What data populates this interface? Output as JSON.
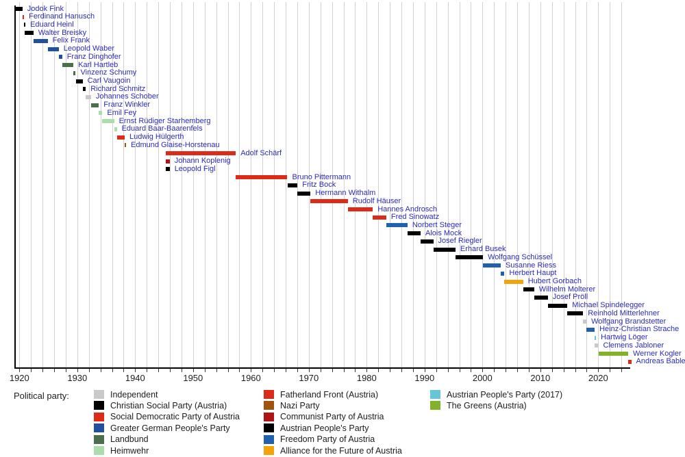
{
  "chart_data": {
    "type": "timeline",
    "description_of_depiction": "Gantt-style timeline of office holders (Vice-Chancellors of Austria) colored by political party, 1919-2025",
    "legend_title": "Political party:",
    "x_axis": {
      "axis_start_year": 1919.2,
      "axis_end_year": 2025.5,
      "gridline_interval_years": 2,
      "gridline_start_year": 1920,
      "gridline_end_year": 2024,
      "tick_labels": [
        "1920",
        "1930",
        "1940",
        "1950",
        "1960",
        "1970",
        "1980",
        "1990",
        "2000",
        "2010",
        "2020"
      ],
      "tick_label_years": [
        1920,
        1930,
        1940,
        1950,
        1960,
        1970,
        1980,
        1990,
        2000,
        2010,
        2020
      ]
    },
    "parties": {
      "independent": {
        "label": "Independent",
        "color": "#c9c9c9"
      },
      "christian_social": {
        "label": "Christian Social Party (Austria)",
        "color": "#000000"
      },
      "social_democratic": {
        "label": "Social Democratic Party of Austria",
        "color": "#dc2b18"
      },
      "greater_german": {
        "label": "Greater German People's Party",
        "color": "#20509e"
      },
      "landbund": {
        "label": "Landbund",
        "color": "#4d6e4d"
      },
      "heimwehr": {
        "label": "Heimwehr",
        "color": "#abdcab"
      },
      "fatherland_front": {
        "label": "Fatherland Front (Austria)",
        "color": "#dc2b18"
      },
      "nazi": {
        "label": "Nazi Party",
        "color": "#a0540e"
      },
      "communist": {
        "label": "Communist Party of Austria",
        "color": "#b01414"
      },
      "peoples_party": {
        "label": "Austrian People's Party",
        "color": "#000000"
      },
      "freedom_party": {
        "label": "Freedom Party of Austria",
        "color": "#2061af"
      },
      "alliance_future": {
        "label": "Alliance for the Future of Austria",
        "color": "#f5a30b"
      },
      "peoples_party_2017": {
        "label": "Austrian People's Party (2017)",
        "color": "#64c6d6"
      },
      "greens": {
        "label": "The Greens (Austria)",
        "color": "#82b12a"
      }
    },
    "legend_columns": [
      [
        "independent",
        "christian_social",
        "social_democratic",
        "greater_german",
        "landbund",
        "heimwehr"
      ],
      [
        "fatherland_front",
        "nazi",
        "communist",
        "peoples_party",
        "freedom_party",
        "alliance_future"
      ],
      [
        "peoples_party_2017",
        "greens"
      ]
    ],
    "people": [
      {
        "name": "Jodok Fink",
        "party": "christian_social",
        "start": 1919.2,
        "end": 1920.53
      },
      {
        "name": "Ferdinand Hanusch",
        "party": "social_democratic",
        "start": 1920.53,
        "end": 1920.81
      },
      {
        "name": "Eduard Heinl",
        "party": "christian_social",
        "start": 1920.81,
        "end": 1920.89
      },
      {
        "name": "Walter Breisky",
        "party": "christian_social",
        "start": 1920.89,
        "end": 1922.42
      },
      {
        "name": "Felix Frank",
        "party": "greater_german",
        "start": 1922.42,
        "end": 1924.89
      },
      {
        "name": "Leopold Waber",
        "party": "greater_german",
        "start": 1924.89,
        "end": 1926.8
      },
      {
        "name": "Franz Dinghofer",
        "party": "greater_german",
        "start": 1926.8,
        "end": 1927.38
      },
      {
        "name": "Karl Hartleb",
        "party": "landbund",
        "start": 1927.38,
        "end": 1929.34
      },
      {
        "name": "Vinzenz Schumy",
        "party": "landbund",
        "start": 1929.34,
        "end": 1929.73
      },
      {
        "name": "Carl Vaugoin",
        "party": "christian_social",
        "start": 1929.73,
        "end": 1930.92
      },
      {
        "name": "Richard Schmitz",
        "party": "christian_social",
        "start": 1930.92,
        "end": 1931.47
      },
      {
        "name": "Johannes Schober",
        "party": "independent",
        "start": 1931.47,
        "end": 1932.38
      },
      {
        "name": "Franz Winkler",
        "party": "landbund",
        "start": 1932.38,
        "end": 1933.72
      },
      {
        "name": "Emil Fey",
        "party": "heimwehr",
        "start": 1933.72,
        "end": 1934.33
      },
      {
        "name": "Ernst Rüdiger Starhemberg",
        "party": "heimwehr",
        "start": 1934.33,
        "end": 1936.37
      },
      {
        "name": "Eduard Baar-Baarenfels",
        "party": "heimwehr",
        "start": 1936.37,
        "end": 1936.84
      },
      {
        "name": "Ludwig Hülgerth",
        "party": "fatherland_front",
        "start": 1936.84,
        "end": 1938.19
      },
      {
        "name": "Edmund Glaise-Horstenau",
        "party": "nazi",
        "start": 1938.19,
        "end": 1938.25
      },
      {
        "name": "Adolf Schärf",
        "party": "social_democratic",
        "start": 1945.32,
        "end": 1957.39
      },
      {
        "name": "Johann Koplenig",
        "party": "communist",
        "start": 1945.32,
        "end": 1945.97
      },
      {
        "name": "Leopold Figl",
        "party": "peoples_party",
        "start": 1945.32,
        "end": 1945.97
      },
      {
        "name": "Bruno Pittermann",
        "party": "social_democratic",
        "start": 1957.39,
        "end": 1966.3
      },
      {
        "name": "Fritz Bock",
        "party": "peoples_party",
        "start": 1966.3,
        "end": 1968.05
      },
      {
        "name": "Hermann Withalm",
        "party": "peoples_party",
        "start": 1968.05,
        "end": 1970.3
      },
      {
        "name": "Rudolf Häuser",
        "party": "social_democratic",
        "start": 1970.3,
        "end": 1976.75
      },
      {
        "name": "Hannes Androsch",
        "party": "social_democratic",
        "start": 1976.75,
        "end": 1981.05
      },
      {
        "name": "Fred Sinowatz",
        "party": "social_democratic",
        "start": 1981.05,
        "end": 1983.39
      },
      {
        "name": "Norbert Steger",
        "party": "freedom_party",
        "start": 1983.39,
        "end": 1987.05
      },
      {
        "name": "Alois Mock",
        "party": "peoples_party",
        "start": 1987.05,
        "end": 1989.31
      },
      {
        "name": "Josef Riegler",
        "party": "peoples_party",
        "start": 1989.31,
        "end": 1991.5
      },
      {
        "name": "Erhard Busek",
        "party": "peoples_party",
        "start": 1991.5,
        "end": 1995.34
      },
      {
        "name": "Wolfgang Schüssel",
        "party": "peoples_party",
        "start": 1995.34,
        "end": 2000.09
      },
      {
        "name": "Susanne Riess",
        "party": "freedom_party",
        "start": 2000.09,
        "end": 2003.16
      },
      {
        "name": "Herbert Haupt",
        "party": "freedom_party",
        "start": 2003.16,
        "end": 2003.8
      },
      {
        "name": "Hubert Gorbach",
        "party": "alliance_future",
        "start": 2003.8,
        "end": 2007.03
      },
      {
        "name": "Wilhelm Molterer",
        "party": "peoples_party",
        "start": 2007.03,
        "end": 2008.92
      },
      {
        "name": "Josef Pröll",
        "party": "peoples_party",
        "start": 2008.92,
        "end": 2011.3
      },
      {
        "name": "Michael Spindelegger",
        "party": "peoples_party",
        "start": 2011.3,
        "end": 2014.67
      },
      {
        "name": "Reinhold Mitterlehner",
        "party": "peoples_party",
        "start": 2014.67,
        "end": 2017.38
      },
      {
        "name": "Wolfgang Brandstetter",
        "party": "independent",
        "start": 2017.38,
        "end": 2017.96
      },
      {
        "name": "Heinz-Christian Strache",
        "party": "freedom_party",
        "start": 2017.96,
        "end": 2019.39
      },
      {
        "name": "Hartwig Löger",
        "party": "peoples_party_2017",
        "start": 2019.39,
        "end": 2019.42
      },
      {
        "name": "Clemens Jabloner",
        "party": "independent",
        "start": 2019.42,
        "end": 2020.02
      },
      {
        "name": "Werner Kogler",
        "party": "greens",
        "start": 2020.02,
        "end": 2025.17
      },
      {
        "name": "Andreas Babler",
        "party": "social_democratic",
        "start": 2025.17,
        "end": 2025.7
      }
    ]
  }
}
